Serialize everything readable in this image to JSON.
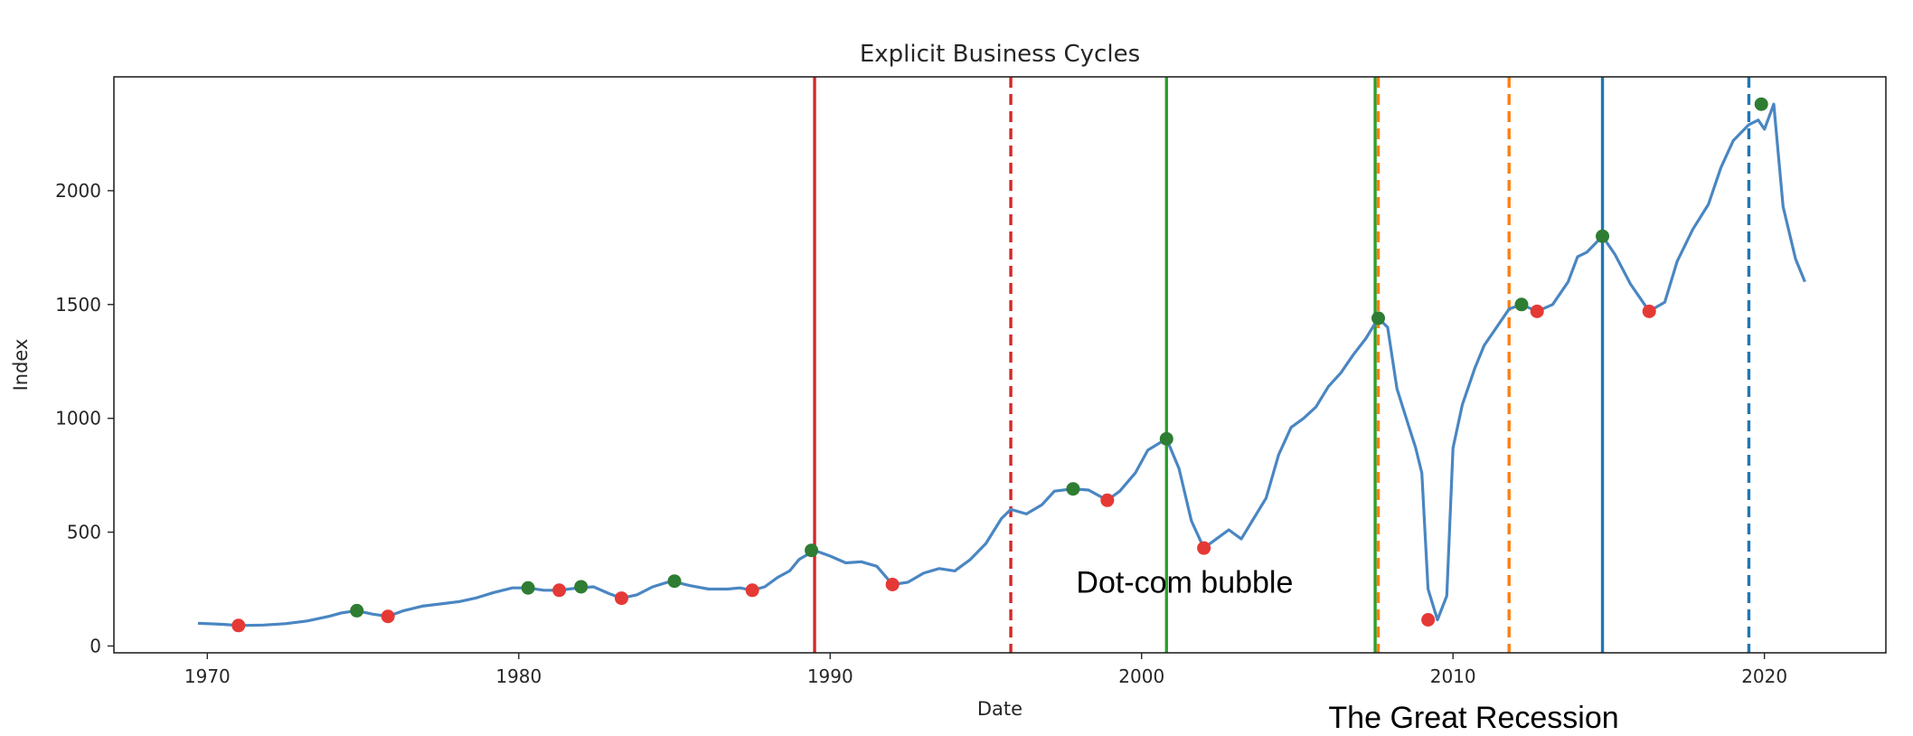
{
  "chart_data": {
    "type": "line",
    "title": "Explicit Business Cycles",
    "xlabel": "Date",
    "ylabel": "Index",
    "xlim": [
      1967.0,
      2023.9
    ],
    "ylim": [
      -30,
      2500
    ],
    "x_ticks": [
      1970,
      1980,
      1990,
      2000,
      2010,
      2020
    ],
    "y_ticks": [
      0,
      500,
      1000,
      1500,
      2000
    ],
    "grid": false,
    "line_color": "#4a86c2",
    "series": [
      {
        "x": [
          1969.7,
          1970.5,
          1971.0,
          1971.8,
          1972.5,
          1973.2,
          1973.9,
          1974.3,
          1974.8,
          1975.3,
          1975.8,
          1976.3,
          1976.9,
          1977.5,
          1978.1,
          1978.6,
          1979.2,
          1979.8,
          1980.3,
          1980.8,
          1981.3,
          1981.9,
          1982.4,
          1982.9,
          1983.3,
          1983.8,
          1984.3,
          1984.9,
          1985.5,
          1986.1,
          1986.7,
          1987.1,
          1987.5,
          1987.9,
          1988.3,
          1988.7,
          1989.0,
          1989.5,
          1990.0,
          1990.5,
          1991.0,
          1991.5,
          1992.0,
          1992.5,
          1993.0,
          1993.5,
          1994.0,
          1994.5,
          1995.0,
          1995.5,
          1995.8,
          1996.3,
          1996.8,
          1997.2,
          1997.8,
          1998.3,
          1998.9,
          1999.3,
          1999.8,
          2000.2,
          2000.8,
          2001.2,
          2001.6,
          2002.0,
          2002.4,
          2002.8,
          2003.2,
          2003.6,
          2004.0,
          2004.4,
          2004.8,
          2005.2,
          2005.6,
          2006.0,
          2006.4,
          2006.8,
          2007.2,
          2007.6,
          2007.9,
          2008.2,
          2008.5,
          2008.8,
          2009.0,
          2009.2,
          2009.5,
          2009.8,
          2010.0,
          2010.3,
          2010.7,
          2011.0,
          2011.4,
          2011.8,
          2012.2,
          2012.7,
          2013.2,
          2013.7,
          2014.0,
          2014.3,
          2014.8,
          2015.2,
          2015.7,
          2016.3,
          2016.8,
          2017.2,
          2017.7,
          2018.2,
          2018.6,
          2019.0,
          2019.5,
          2019.8,
          2020.0,
          2020.3,
          2020.6,
          2021.0,
          2021.3
        ],
        "values": [
          100,
          95,
          90,
          92,
          98,
          110,
          130,
          145,
          155,
          140,
          130,
          155,
          175,
          185,
          195,
          210,
          235,
          255,
          255,
          245,
          245,
          255,
          260,
          230,
          210,
          225,
          260,
          285,
          265,
          250,
          250,
          255,
          245,
          260,
          300,
          330,
          380,
          420,
          395,
          365,
          370,
          350,
          270,
          280,
          320,
          340,
          330,
          380,
          450,
          560,
          600,
          580,
          620,
          680,
          690,
          685,
          640,
          680,
          760,
          860,
          910,
          780,
          550,
          430,
          470,
          510,
          470,
          560,
          650,
          840,
          960,
          1000,
          1050,
          1140,
          1200,
          1280,
          1350,
          1440,
          1400,
          1130,
          1000,
          870,
          760,
          250,
          115,
          220,
          870,
          1060,
          1220,
          1320,
          1400,
          1480,
          1500,
          1470,
          1500,
          1600,
          1710,
          1730,
          1800,
          1720,
          1590,
          1470,
          1510,
          1690,
          1830,
          1940,
          2100,
          2220,
          2290,
          2310,
          2270,
          2380,
          1930,
          1700,
          1600
        ]
      }
    ],
    "peaks": {
      "name": "peak",
      "color": "#2e7d32",
      "x": [
        1974.8,
        1980.3,
        1982.0,
        1985.0,
        1989.4,
        1997.8,
        2000.8,
        2007.6,
        2012.2,
        2014.8,
        2019.9
      ],
      "values": [
        155,
        255,
        260,
        285,
        420,
        690,
        910,
        1440,
        1500,
        1800,
        2380
      ]
    },
    "troughs": {
      "name": "trough",
      "color": "#e53935",
      "x": [
        1971.0,
        1975.8,
        1981.3,
        1983.3,
        1987.5,
        1992.0,
        1998.9,
        2002.0,
        2009.2,
        2012.7,
        2016.3
      ],
      "values": [
        90,
        130,
        245,
        210,
        245,
        270,
        640,
        430,
        115,
        1470,
        1470
      ]
    },
    "vertical_lines": [
      {
        "x": 1989.5,
        "color": "#d62728",
        "style": "solid"
      },
      {
        "x": 1995.8,
        "color": "#d62728",
        "style": "dashed"
      },
      {
        "x": 2000.8,
        "color": "#2ca02c",
        "style": "solid"
      },
      {
        "x": 2007.5,
        "color": "#2ca02c",
        "style": "solid"
      },
      {
        "x": 2007.6,
        "color": "#ff7f0e",
        "style": "dashed"
      },
      {
        "x": 2011.8,
        "color": "#ff7f0e",
        "style": "dashed"
      },
      {
        "x": 2014.8,
        "color": "#1f77b4",
        "style": "solid"
      },
      {
        "x": 2019.5,
        "color": "#1f77b4",
        "style": "dashed"
      }
    ],
    "annotations": [
      {
        "text": "Dot-com bubble",
        "x": 1997.9,
        "y": 235
      },
      {
        "text": "The Great Recession",
        "x": 2006.0,
        "y": -360
      }
    ]
  }
}
